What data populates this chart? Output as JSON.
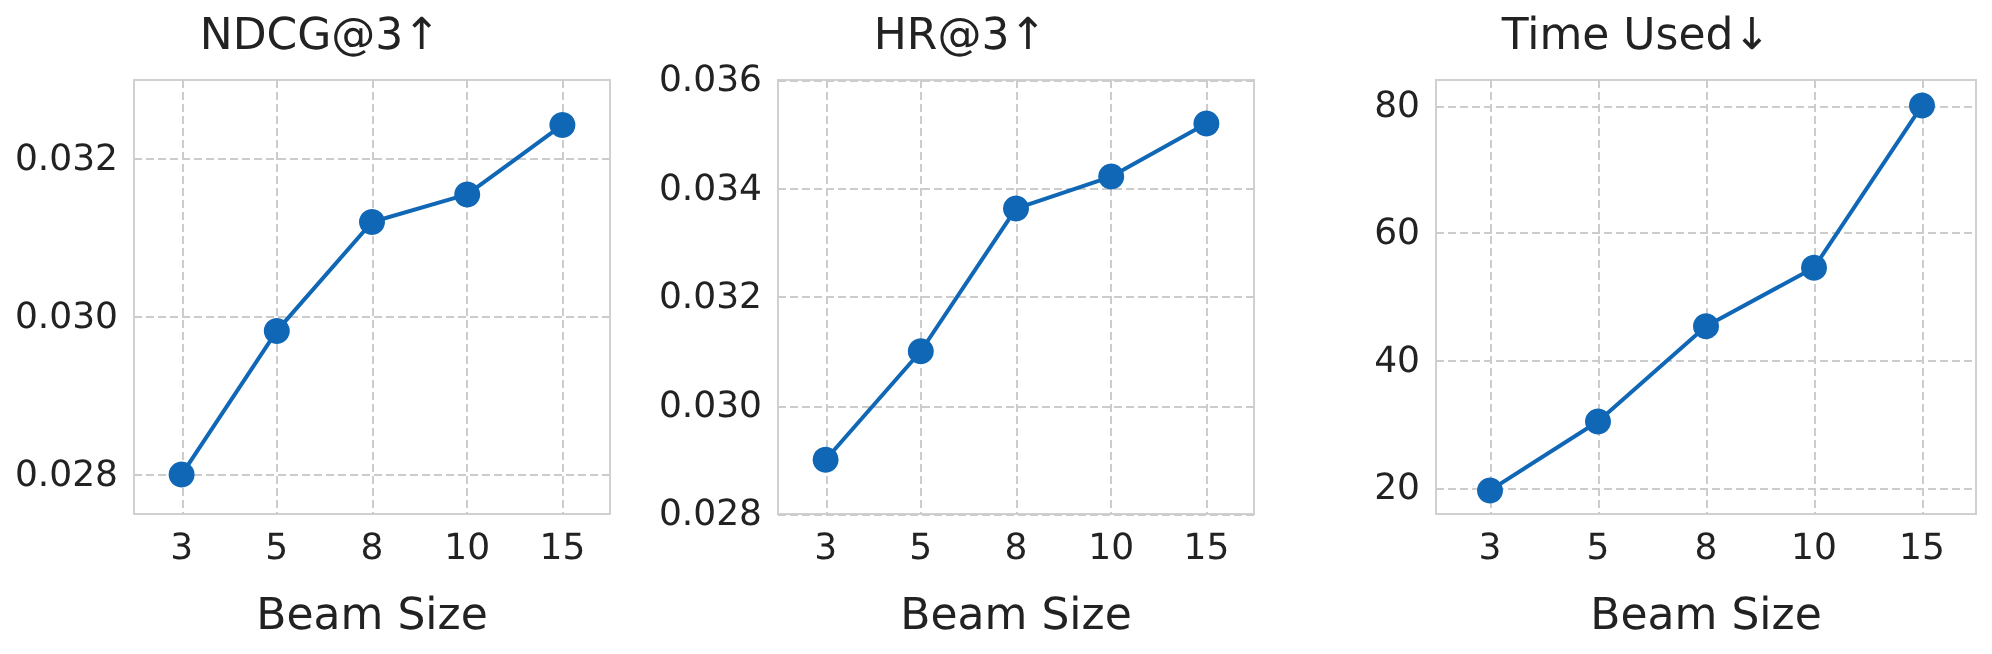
{
  "chart_data": [
    {
      "type": "line",
      "title": "NDCG@3↑",
      "xlabel": "Beam Size",
      "categories": [
        "3",
        "5",
        "8",
        "10",
        "15"
      ],
      "series": [
        {
          "color": "#0f67b5",
          "values": [
            0.028,
            0.02982,
            0.0312,
            0.03155,
            0.03243
          ]
        }
      ],
      "ylim": [
        0.0275,
        0.033
      ],
      "yticks": [
        0.028,
        {
          "value": 0.03,
          "label": "0.030"
        },
        0.032
      ],
      "grid": true,
      "marker": "circle",
      "line_style": "solid"
    },
    {
      "type": "line",
      "title": "HR@3↑",
      "xlabel": "Beam Size",
      "categories": [
        "3",
        "5",
        "8",
        "10",
        "15"
      ],
      "series": [
        {
          "color": "#0f67b5",
          "values": [
            0.029,
            0.031,
            0.03363,
            0.03422,
            0.0352
          ]
        }
      ],
      "ylim": [
        0.028,
        0.036
      ],
      "yticks": [
        0.028,
        {
          "value": 0.03,
          "label": "0.030"
        },
        0.032,
        0.034,
        0.036
      ],
      "grid": true,
      "marker": "circle",
      "line_style": "solid"
    },
    {
      "type": "line",
      "title": "Time Used↓",
      "xlabel": "Beam Size",
      "categories": [
        "3",
        "5",
        "8",
        "10",
        "15"
      ],
      "series": [
        {
          "color": "#0f67b5",
          "values": [
            19.7,
            30.5,
            45.4,
            54.6,
            80
          ]
        }
      ],
      "ylim": [
        16,
        84
      ],
      "yticks": [
        20,
        40,
        60,
        80
      ],
      "grid": true,
      "marker": "circle",
      "line_style": "solid"
    }
  ]
}
